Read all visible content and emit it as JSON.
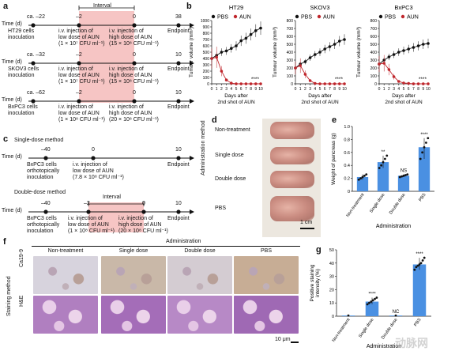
{
  "panels": {
    "a": "a",
    "b": "b",
    "c": "c",
    "d": "d",
    "e": "e",
    "f": "f",
    "g": "g"
  },
  "timeline_a": {
    "interval_label": "Interval",
    "time_label": "Time (d)",
    "rows": [
      {
        "t0": "ca. –22",
        "t1": "–2",
        "t2": "0",
        "t3": "38",
        "cells": "HT29 cells\ninoculation",
        "low": "i.v. injection of\nlow dose of AUN\n(1 × 10⁷ CFU ml⁻¹)",
        "high": "i.v. injection of\nhigh dose of AUN\n(15 × 10⁸ CFU ml⁻¹)",
        "end": "Endpoint"
      },
      {
        "t0": "ca. –32",
        "t1": "–2",
        "t2": "0",
        "t3": "10",
        "cells": "SKOV3 cells\ninoculation",
        "low": "i.v. injection of\nlow dose of AUN\n(1 × 10⁷ CFU ml⁻¹)",
        "high": "i.v. injection of\nhigh dose of AUN\n(15 × 10⁸ CFU ml⁻¹)",
        "end": "Endpoint"
      },
      {
        "t0": "ca. –62",
        "t1": "–2",
        "t2": "0",
        "t3": "10",
        "cells": "BxPC3 cells\ninoculation",
        "low": "i.v. injection of\nlow dose of AUN\n(1 × 10⁸ CFU ml⁻¹)",
        "high": "i.v. injection of\nhigh dose of AUN\n(20 × 10⁸ CFU ml⁻¹)",
        "end": "Endpoint"
      }
    ]
  },
  "timeline_c": {
    "single_title": "Single-dose method",
    "double_title": "Double-dose method",
    "interval_label": "Interval",
    "time_label": "Time (d)",
    "single": {
      "t0": "–40",
      "t1": "0",
      "t2": "10",
      "a": "BxPC3 cells\northotopically\ninoculation",
      "b": "i.v. injection of\nlow dose of AUN\n(7.8 × 10⁸ CFU ml⁻¹)",
      "end": "Endpoint"
    },
    "double": {
      "t0": "–40",
      "t1": "–2",
      "t2": "0",
      "t3": "10",
      "a": "BxPC3 cells\northotopically\ninoculation",
      "b": "i.v. injection of\nlow dose of AUN\n(1 × 10⁸ CFU ml⁻¹)",
      "c": "i.v. injection of\nhigh dose of AUN\n(20 × 10⁸ CFU ml⁻¹)",
      "end": "Endpoint"
    }
  },
  "chart_data": [
    {
      "type": "line",
      "title": "HT29",
      "ylabel": "Tumour volume (mm³)",
      "xlabel": "Days after 2nd shot of AUN",
      "ylim": [
        0,
        1000
      ],
      "yticks": [
        0,
        100,
        200,
        300,
        400,
        500,
        600,
        700,
        800,
        900,
        1000
      ],
      "x": [
        0,
        1,
        2,
        3,
        4,
        5,
        6,
        7,
        8,
        9,
        10
      ],
      "series": [
        {
          "name": "PBS",
          "values": [
            400,
            450,
            500,
            520,
            560,
            600,
            680,
            720,
            780,
            840,
            880
          ],
          "color": "#111111"
        },
        {
          "name": "AUN",
          "values": [
            400,
            420,
            200,
            60,
            10,
            0,
            0,
            0,
            0,
            0,
            0
          ],
          "color": "#c0272d"
        }
      ],
      "sig": "****"
    },
    {
      "type": "line",
      "title": "SKOV3",
      "ylabel": "Tumour volume (mm³)",
      "xlabel": "Days after 2nd shot of AUN",
      "ylim": [
        0,
        800
      ],
      "yticks": [
        0,
        100,
        200,
        300,
        400,
        500,
        600,
        700,
        800
      ],
      "x": [
        0,
        1,
        2,
        3,
        4,
        5,
        6,
        7,
        8,
        9,
        10
      ],
      "series": [
        {
          "name": "PBS",
          "values": [
            200,
            250,
            280,
            330,
            370,
            400,
            440,
            470,
            500,
            540,
            560
          ],
          "color": "#111111"
        },
        {
          "name": "AUN",
          "values": [
            200,
            230,
            120,
            40,
            5,
            0,
            0,
            0,
            0,
            0,
            0
          ],
          "color": "#c0272d"
        }
      ],
      "sig": "****"
    },
    {
      "type": "line",
      "title": "BxPC3",
      "ylabel": "Tumour volume (mm³)",
      "xlabel": "Days after 2nd shot of AUN",
      "ylim": [
        0,
        800
      ],
      "yticks": [
        0,
        100,
        200,
        300,
        400,
        500,
        600,
        700,
        800
      ],
      "x": [
        0,
        1,
        2,
        3,
        4,
        5,
        6,
        7,
        8,
        9,
        10
      ],
      "series": [
        {
          "name": "PBS",
          "values": [
            250,
            300,
            340,
            370,
            400,
            420,
            440,
            460,
            480,
            500,
            510
          ],
          "color": "#111111"
        },
        {
          "name": "AUN",
          "values": [
            250,
            260,
            180,
            90,
            30,
            10,
            5,
            0,
            0,
            0,
            0
          ],
          "color": "#c0272d"
        }
      ],
      "sig": "****"
    },
    {
      "type": "bar",
      "title": "",
      "ylabel": "Weight of pancreas (g)",
      "xlabel": "Administration",
      "ylim": [
        0,
        1.0
      ],
      "yticks": [
        "0",
        "0.2",
        "0.4",
        "0.6",
        "0.8",
        "1.0"
      ],
      "categories": [
        "Non-treatment",
        "Single dose",
        "Double dose",
        "PBS"
      ],
      "values": [
        0.22,
        0.45,
        0.24,
        0.68
      ],
      "sig": [
        "",
        "**",
        "NS",
        "****"
      ],
      "points": [
        [
          0.18,
          0.2,
          0.22,
          0.24,
          0.26
        ],
        [
          0.36,
          0.4,
          0.45,
          0.5,
          0.55
        ],
        [
          0.22,
          0.23,
          0.24,
          0.25,
          0.26
        ],
        [
          0.5,
          0.6,
          0.68,
          0.75,
          0.82
        ]
      ]
    },
    {
      "type": "bar",
      "title": "",
      "ylabel": "Positive staining\nintensity (%)",
      "xlabel": "Administration",
      "ylim": [
        0,
        50
      ],
      "yticks": [
        "0",
        "10",
        "20",
        "30",
        "40",
        "50"
      ],
      "categories": [
        "Non-treatment",
        "Single dose",
        "Double dose",
        "PBS"
      ],
      "values": [
        0.5,
        11,
        0.5,
        39
      ],
      "sig": [
        "",
        "****",
        "NC",
        "****"
      ],
      "points": [
        [
          0.5
        ],
        [
          9,
          10,
          11,
          12,
          13,
          14
        ],
        [
          0.5
        ],
        [
          35,
          37,
          38,
          39,
          40,
          42,
          44
        ]
      ]
    }
  ],
  "legend": {
    "pbs": "PBS",
    "aun": "AUN"
  },
  "panel_d": {
    "side_label": "Administration method",
    "rows": [
      "Non-treatment",
      "Single dose",
      "Double dose",
      "PBS"
    ],
    "scale": "1 cm"
  },
  "panel_f": {
    "top_label": "Administration",
    "cols": [
      "Non-treatment",
      "Single dose",
      "Double dose",
      "PBS"
    ],
    "side_label": "Staining method",
    "rows": [
      "Ca19-9",
      "H&E"
    ],
    "scale": "10 μm"
  },
  "watermark": "动脉网"
}
